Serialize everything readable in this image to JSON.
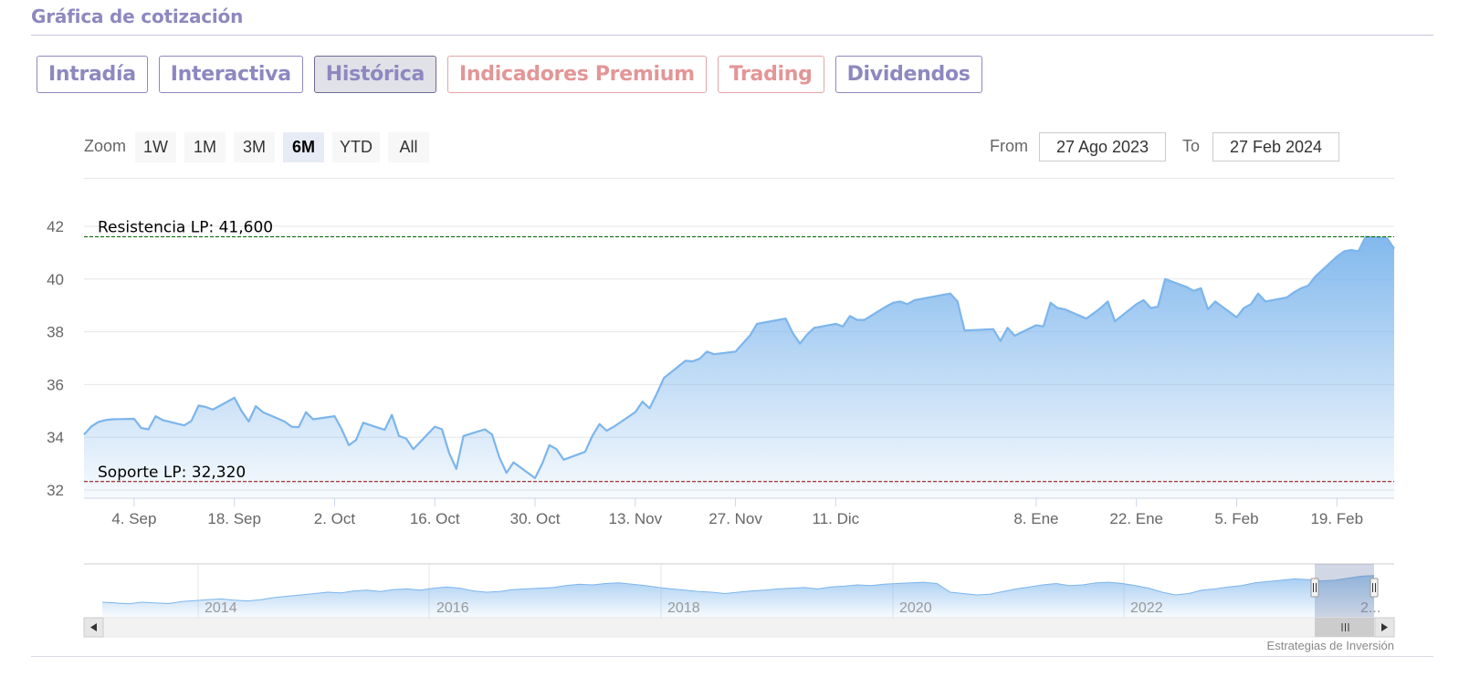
{
  "section_title": "Gráfica de cotización",
  "tabs": [
    {
      "label": "Intradía",
      "active": false,
      "premium": false
    },
    {
      "label": "Interactiva",
      "active": false,
      "premium": false
    },
    {
      "label": "Histórica",
      "active": true,
      "premium": false
    },
    {
      "label": "Indicadores Premium",
      "active": false,
      "premium": true
    },
    {
      "label": "Trading",
      "active": false,
      "premium": true
    },
    {
      "label": "Dividendos",
      "active": false,
      "premium": false
    }
  ],
  "zoom": {
    "label": "Zoom",
    "buttons": [
      "1W",
      "1M",
      "3M",
      "6M",
      "YTD",
      "All"
    ],
    "selected": "6M"
  },
  "range": {
    "from_label": "From",
    "from_value": "27 Ago 2023",
    "to_label": "To",
    "to_value": "27 Feb 2024"
  },
  "credits": "Estrategias de Inversión",
  "colors": {
    "tab_border": "#8d88c0",
    "premium": "#e39696",
    "series_line": "#7cb5ec",
    "resistance": "#006400",
    "support": "#8b0000"
  },
  "chart_data": {
    "type": "area",
    "title": "",
    "ylim": [
      32,
      42
    ],
    "y_ticks": [
      32,
      34,
      36,
      38,
      40,
      42
    ],
    "x_tick_labels": [
      "4. Sep",
      "18. Sep",
      "2. Oct",
      "16. Oct",
      "30. Oct",
      "13. Nov",
      "27. Nov",
      "11. Dic",
      "8. Ene",
      "22. Ene",
      "5. Feb",
      "19. Feb"
    ],
    "x_start": "2023-08-28",
    "x_end": "2024-02-27",
    "series": [
      {
        "values": [
          [
            "2023-08-28",
            34.1
          ],
          [
            "2023-08-29",
            34.4
          ],
          [
            "2023-08-30",
            34.58
          ],
          [
            "2023-08-31",
            34.65
          ],
          [
            "2023-09-01",
            34.68
          ],
          [
            "2023-09-04",
            34.7
          ],
          [
            "2023-09-05",
            34.35
          ],
          [
            "2023-09-06",
            34.3
          ],
          [
            "2023-09-07",
            34.8
          ],
          [
            "2023-09-08",
            34.65
          ],
          [
            "2023-09-11",
            34.45
          ],
          [
            "2023-09-12",
            34.62
          ],
          [
            "2023-09-13",
            35.2
          ],
          [
            "2023-09-14",
            35.15
          ],
          [
            "2023-09-15",
            35.05
          ],
          [
            "2023-09-18",
            35.5
          ],
          [
            "2023-09-19",
            35.0
          ],
          [
            "2023-09-20",
            34.6
          ],
          [
            "2023-09-21",
            35.18
          ],
          [
            "2023-09-22",
            34.95
          ],
          [
            "2023-09-25",
            34.6
          ],
          [
            "2023-09-26",
            34.4
          ],
          [
            "2023-09-27",
            34.38
          ],
          [
            "2023-09-28",
            34.95
          ],
          [
            "2023-09-29",
            34.68
          ],
          [
            "2023-10-02",
            34.8
          ],
          [
            "2023-10-03",
            34.3
          ],
          [
            "2023-10-04",
            33.7
          ],
          [
            "2023-10-05",
            33.9
          ],
          [
            "2023-10-06",
            34.55
          ],
          [
            "2023-10-09",
            34.28
          ],
          [
            "2023-10-10",
            34.85
          ],
          [
            "2023-10-11",
            34.05
          ],
          [
            "2023-10-12",
            33.95
          ],
          [
            "2023-10-13",
            33.55
          ],
          [
            "2023-10-16",
            34.4
          ],
          [
            "2023-10-17",
            34.3
          ],
          [
            "2023-10-18",
            33.4
          ],
          [
            "2023-10-19",
            32.8
          ],
          [
            "2023-10-20",
            34.05
          ],
          [
            "2023-10-23",
            34.3
          ],
          [
            "2023-10-24",
            34.1
          ],
          [
            "2023-10-25",
            33.25
          ],
          [
            "2023-10-26",
            32.65
          ],
          [
            "2023-10-27",
            33.05
          ],
          [
            "2023-10-30",
            32.45
          ],
          [
            "2023-10-31",
            33.0
          ],
          [
            "2023-11-01",
            33.7
          ],
          [
            "2023-11-02",
            33.55
          ],
          [
            "2023-11-03",
            33.15
          ],
          [
            "2023-11-06",
            33.45
          ],
          [
            "2023-11-07",
            34.05
          ],
          [
            "2023-11-08",
            34.5
          ],
          [
            "2023-11-09",
            34.25
          ],
          [
            "2023-11-10",
            34.4
          ],
          [
            "2023-11-13",
            34.95
          ],
          [
            "2023-11-14",
            35.35
          ],
          [
            "2023-11-15",
            35.1
          ],
          [
            "2023-11-16",
            35.65
          ],
          [
            "2023-11-17",
            36.25
          ],
          [
            "2023-11-20",
            36.9
          ],
          [
            "2023-11-21",
            36.88
          ],
          [
            "2023-11-22",
            36.98
          ],
          [
            "2023-11-23",
            37.25
          ],
          [
            "2023-11-24",
            37.15
          ],
          [
            "2023-11-27",
            37.25
          ],
          [
            "2023-11-28",
            37.55
          ],
          [
            "2023-11-29",
            37.85
          ],
          [
            "2023-11-30",
            38.3
          ],
          [
            "2023-12-01",
            38.35
          ],
          [
            "2023-12-04",
            38.5
          ],
          [
            "2023-12-05",
            37.95
          ],
          [
            "2023-12-06",
            37.55
          ],
          [
            "2023-12-07",
            37.9
          ],
          [
            "2023-12-08",
            38.15
          ],
          [
            "2023-12-11",
            38.3
          ],
          [
            "2023-12-12",
            38.2
          ],
          [
            "2023-12-13",
            38.6
          ],
          [
            "2023-12-14",
            38.45
          ],
          [
            "2023-12-15",
            38.45
          ],
          [
            "2023-12-18",
            38.95
          ],
          [
            "2023-12-19",
            39.1
          ],
          [
            "2023-12-20",
            39.15
          ],
          [
            "2023-12-21",
            39.05
          ],
          [
            "2023-12-22",
            39.2
          ],
          [
            "2023-12-27",
            39.45
          ],
          [
            "2023-12-28",
            39.15
          ],
          [
            "2023-12-29",
            38.05
          ],
          [
            "2024-01-02",
            38.1
          ],
          [
            "2024-01-03",
            37.65
          ],
          [
            "2024-01-04",
            38.15
          ],
          [
            "2024-01-05",
            37.85
          ],
          [
            "2024-01-08",
            38.25
          ],
          [
            "2024-01-09",
            38.2
          ],
          [
            "2024-01-10",
            39.1
          ],
          [
            "2024-01-11",
            38.9
          ],
          [
            "2024-01-12",
            38.85
          ],
          [
            "2024-01-15",
            38.5
          ],
          [
            "2024-01-16",
            38.7
          ],
          [
            "2024-01-17",
            38.9
          ],
          [
            "2024-01-18",
            39.15
          ],
          [
            "2024-01-19",
            38.4
          ],
          [
            "2024-01-22",
            39.05
          ],
          [
            "2024-01-23",
            39.2
          ],
          [
            "2024-01-24",
            38.9
          ],
          [
            "2024-01-25",
            38.95
          ],
          [
            "2024-01-26",
            40.0
          ],
          [
            "2024-01-29",
            39.7
          ],
          [
            "2024-01-30",
            39.55
          ],
          [
            "2024-01-31",
            39.65
          ],
          [
            "2024-02-01",
            38.85
          ],
          [
            "2024-02-02",
            39.15
          ],
          [
            "2024-02-05",
            38.55
          ],
          [
            "2024-02-06",
            38.9
          ],
          [
            "2024-02-07",
            39.05
          ],
          [
            "2024-02-08",
            39.45
          ],
          [
            "2024-02-09",
            39.15
          ],
          [
            "2024-02-12",
            39.3
          ],
          [
            "2024-02-13",
            39.5
          ],
          [
            "2024-02-14",
            39.65
          ],
          [
            "2024-02-15",
            39.75
          ],
          [
            "2024-02-16",
            40.1
          ],
          [
            "2024-02-19",
            40.85
          ],
          [
            "2024-02-20",
            41.05
          ],
          [
            "2024-02-21",
            41.1
          ],
          [
            "2024-02-22",
            41.05
          ],
          [
            "2024-02-23",
            41.6
          ],
          [
            "2024-02-26",
            41.55
          ],
          [
            "2024-02-27",
            41.15
          ]
        ]
      }
    ],
    "plot_lines": [
      {
        "label": "Resistencia LP: 41,600",
        "value": 41.6,
        "color": "#006400"
      },
      {
        "label": "Soporte LP: 32,320",
        "value": 32.32,
        "color": "#8b0000"
      }
    ],
    "grid": true,
    "navigator": {
      "year_labels": [
        "2014",
        "2016",
        "2018",
        "2020",
        "2022",
        "2..."
      ],
      "values": [
        0.3,
        0.28,
        0.25,
        0.3,
        0.28,
        0.26,
        0.32,
        0.35,
        0.38,
        0.4,
        0.36,
        0.34,
        0.38,
        0.44,
        0.48,
        0.52,
        0.56,
        0.6,
        0.58,
        0.64,
        0.66,
        0.62,
        0.68,
        0.7,
        0.66,
        0.72,
        0.76,
        0.72,
        0.64,
        0.6,
        0.62,
        0.68,
        0.7,
        0.72,
        0.74,
        0.8,
        0.84,
        0.82,
        0.86,
        0.88,
        0.84,
        0.8,
        0.74,
        0.7,
        0.66,
        0.62,
        0.6,
        0.56,
        0.6,
        0.64,
        0.66,
        0.7,
        0.72,
        0.74,
        0.7,
        0.76,
        0.78,
        0.82,
        0.8,
        0.84,
        0.86,
        0.88,
        0.9,
        0.86,
        0.6,
        0.56,
        0.52,
        0.54,
        0.62,
        0.7,
        0.76,
        0.82,
        0.86,
        0.8,
        0.82,
        0.88,
        0.9,
        0.86,
        0.8,
        0.72,
        0.6,
        0.52,
        0.56,
        0.66,
        0.7,
        0.76,
        0.8,
        0.88,
        0.92,
        0.96,
        1.0,
        0.98,
        0.94,
        0.96,
        1.02,
        1.08,
        1.1
      ]
    }
  }
}
